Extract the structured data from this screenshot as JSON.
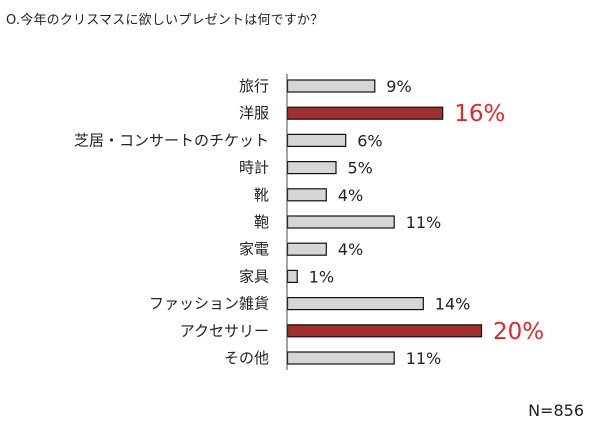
{
  "title": "O.今年のクリスマスに欲しいプレゼントは何ですか？",
  "note": "N=856",
  "colors": {
    "bar": "#d6d6d6",
    "bar_highlight": "#a0302e",
    "label_highlight": "#e0282c",
    "axis": "#444444"
  },
  "chart_data": {
    "type": "bar",
    "orientation": "horizontal",
    "title": "O.今年のクリスマスに欲しいプレゼントは何ですか？",
    "categories": [
      "旅行",
      "洋服",
      "芝居・コンサートのチケット",
      "時計",
      "靴",
      "鞄",
      "家電",
      "家具",
      "ファッション雑貨",
      "アクセサリー",
      "その他"
    ],
    "values": [
      9,
      16,
      6,
      5,
      4,
      11,
      4,
      1,
      14,
      20,
      11
    ],
    "labels": [
      "9%",
      "16%",
      "6%",
      "5%",
      "4%",
      "11%",
      "4%",
      "1%",
      "14%",
      "20%",
      "11%"
    ],
    "highlighted": [
      "洋服",
      "アクセサリー"
    ],
    "unit": "%",
    "grid": false,
    "legend": "none"
  }
}
